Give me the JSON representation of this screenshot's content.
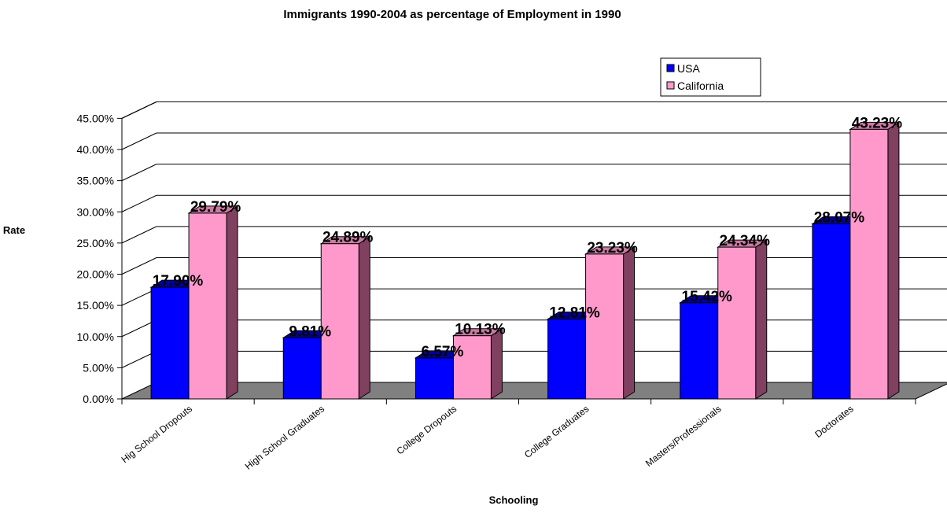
{
  "chart_data": {
    "type": "bar",
    "title": "Immigrants 1990-2004 as percentage of Employment in 1990",
    "xlabel": "Schooling",
    "ylabel": "Rate",
    "categories": [
      "Hig School Dropouts",
      "High School Graduates",
      "College Dropouts",
      "College Graduates",
      "Masters/Professionals",
      "Doctorates"
    ],
    "yticks": [
      "0.00%",
      "5.00%",
      "10.00%",
      "15.00%",
      "20.00%",
      "25.00%",
      "30.00%",
      "35.00%",
      "40.00%",
      "45.00%"
    ],
    "ylim": [
      0,
      45
    ],
    "grid": true,
    "three_d": true,
    "legend_position": "top-right",
    "series": [
      {
        "name": "USA",
        "color": "#0000ff",
        "values": [
          17.9,
          9.81,
          6.57,
          12.81,
          15.42,
          28.07
        ],
        "labels": [
          "17.90%",
          "9.81%",
          "6.57%",
          "12.81%",
          "15.42%",
          "28.07%"
        ]
      },
      {
        "name": "California",
        "color": "#ff99cc",
        "values": [
          29.79,
          24.89,
          10.13,
          23.23,
          24.34,
          43.23
        ],
        "labels": [
          "29.79%",
          "24.89%",
          "10.13%",
          "23.23%",
          "24.34%",
          "43.23%"
        ]
      }
    ]
  }
}
